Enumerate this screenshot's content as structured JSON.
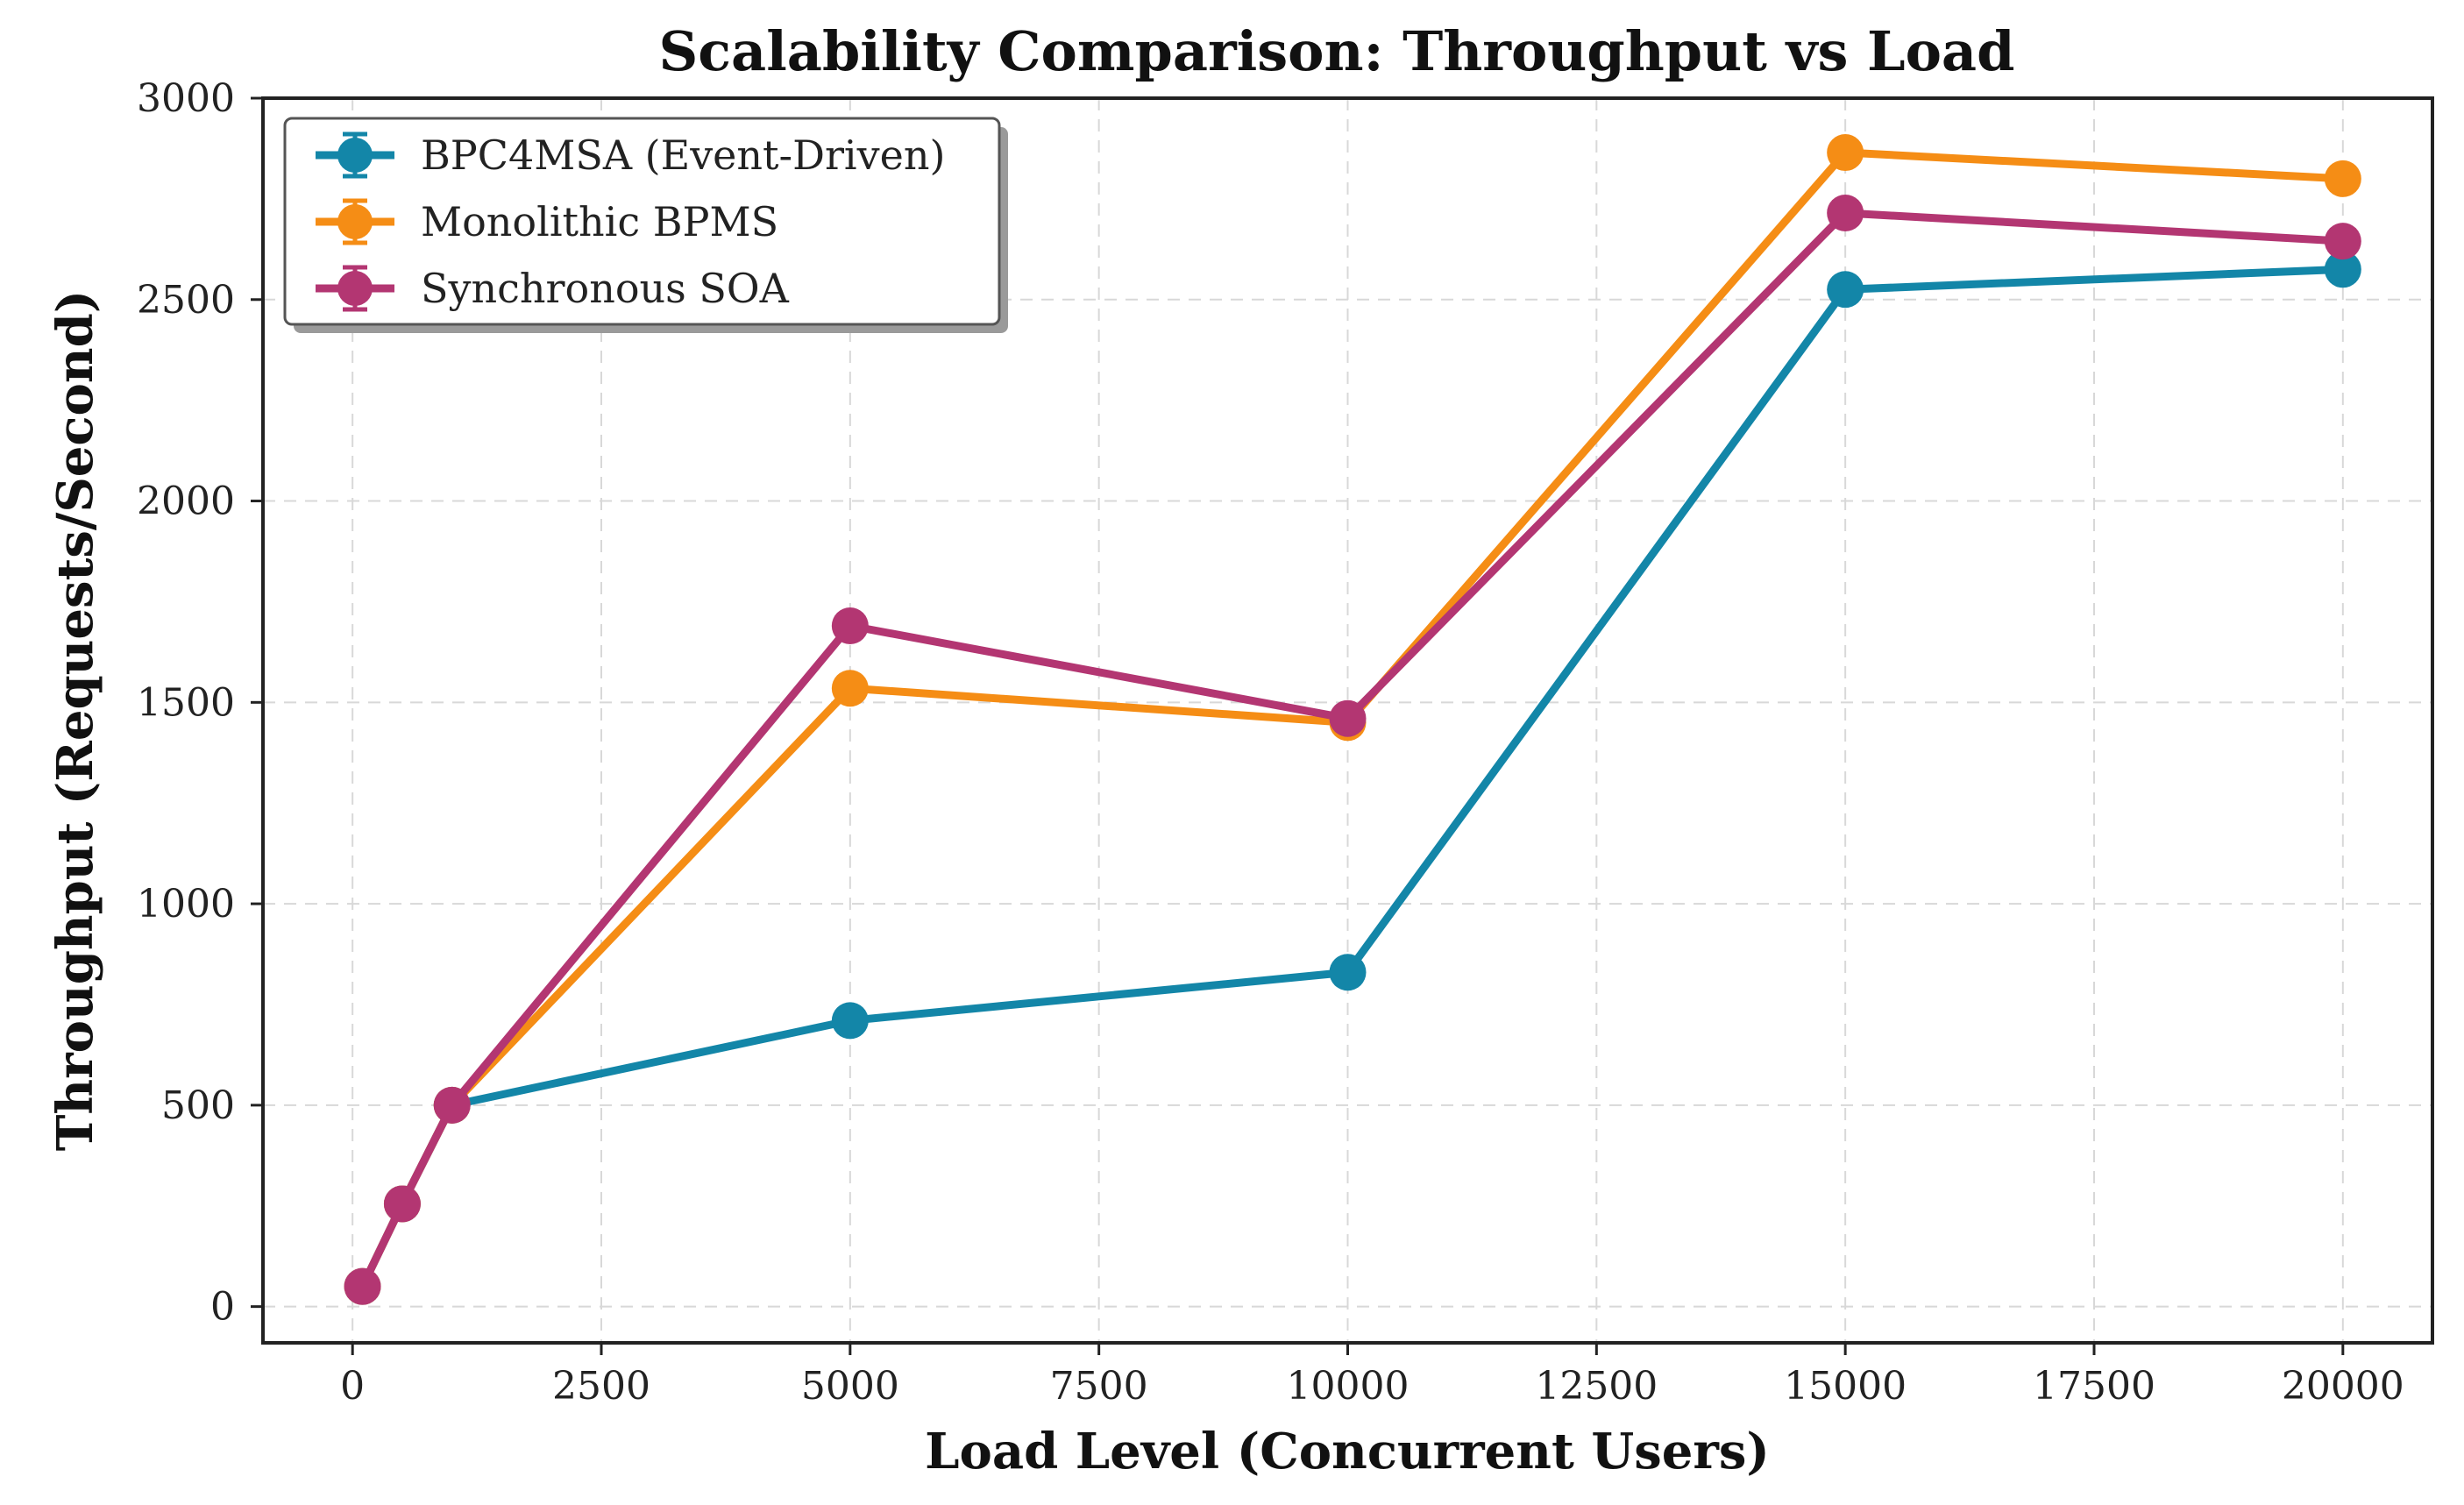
{
  "chart_data": {
    "type": "line",
    "title": "Scalability Comparison: Throughput vs Load",
    "xlabel": "Load Level (Concurrent Users)",
    "ylabel": "Throughput (Requests/Second)",
    "xlim": [
      -900,
      20900
    ],
    "ylim": [
      -90,
      3000
    ],
    "xticks": [
      0,
      2500,
      5000,
      7500,
      10000,
      12500,
      15000,
      17500,
      20000
    ],
    "yticks": [
      0,
      500,
      1000,
      1500,
      2000,
      2500,
      3000
    ],
    "grid": true,
    "legend_position": "top-left",
    "x": [
      100,
      500,
      1000,
      5000,
      10000,
      15000,
      20000
    ],
    "series": [
      {
        "name": "BPC4MSA (Event-Driven)",
        "color": "#1386a8",
        "values": [
          50,
          255,
          500,
          710,
          830,
          2525,
          2575
        ]
      },
      {
        "name": "Monolithic BPMS",
        "color": "#f58d15",
        "values": [
          50,
          255,
          500,
          1535,
          1450,
          2865,
          2800
        ]
      },
      {
        "name": "Synchronous SOA",
        "color": "#b33672",
        "values": [
          50,
          255,
          500,
          1690,
          1460,
          2715,
          2645
        ]
      }
    ]
  }
}
